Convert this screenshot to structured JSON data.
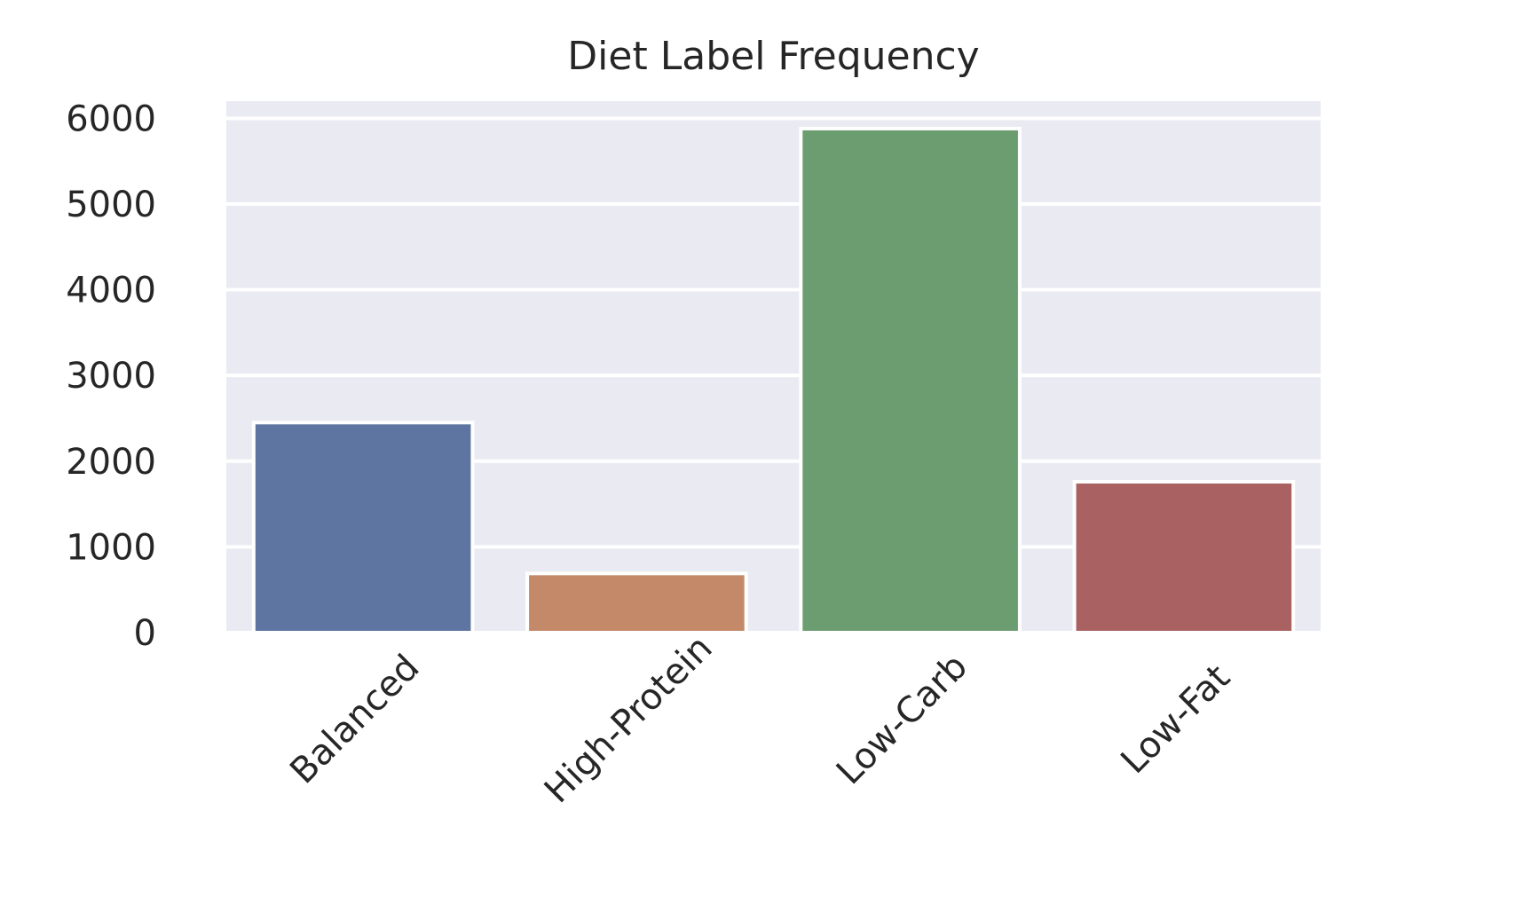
{
  "chart_data": {
    "type": "bar",
    "title": "Diet Label Frequency",
    "xlabel": "",
    "ylabel": "",
    "categories": [
      "Balanced",
      "High-Protein",
      "Low-Carb",
      "Low-Fat"
    ],
    "values": [
      2450,
      690,
      5880,
      1760
    ],
    "colors": [
      "#5d75a0",
      "#c48968",
      "#6c9d71",
      "#a96161"
    ],
    "ylim": [
      0,
      6200
    ],
    "yticks": [
      0,
      1000,
      2000,
      3000,
      4000,
      5000,
      6000
    ],
    "ytick_labels": [
      "0",
      "1000",
      "2000",
      "3000",
      "4000",
      "5000",
      "6000"
    ],
    "xtick_rotation_deg": 45,
    "grid": true,
    "background": "#eaeaf2",
    "legend": null
  }
}
